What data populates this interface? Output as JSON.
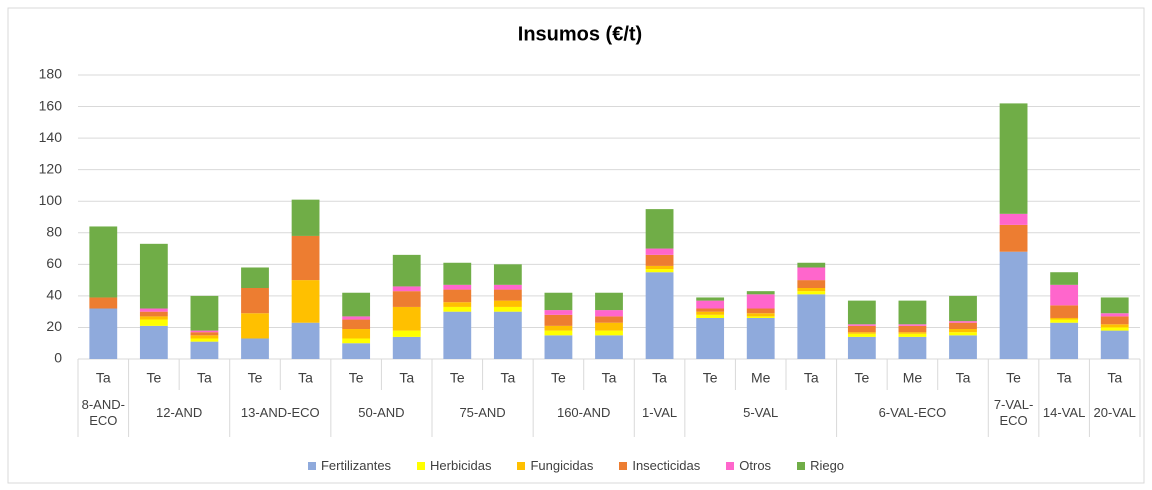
{
  "chart_data": {
    "type": "bar",
    "stacked": true,
    "title": "Insumos (€/t)",
    "groups": [
      {
        "name": "8-AND-ECO",
        "categories": [
          "Ta"
        ]
      },
      {
        "name": "12-AND",
        "categories": [
          "Te",
          "Ta"
        ]
      },
      {
        "name": "13-AND-ECO",
        "categories": [
          "Te",
          "Ta"
        ]
      },
      {
        "name": "50-AND",
        "categories": [
          "Te",
          "Ta"
        ]
      },
      {
        "name": "75-AND",
        "categories": [
          "Te",
          "Ta"
        ]
      },
      {
        "name": "160-AND",
        "categories": [
          "Te",
          "Ta"
        ]
      },
      {
        "name": "1-VAL",
        "categories": [
          "Ta"
        ]
      },
      {
        "name": "5-VAL",
        "categories": [
          "Te",
          "Me",
          "Ta"
        ]
      },
      {
        "name": "6-VAL-ECO",
        "categories": [
          "Te",
          "Me",
          "Ta"
        ]
      },
      {
        "name": "7-VAL-ECO",
        "categories": [
          "Te"
        ]
      },
      {
        "name": "14-VAL",
        "categories": [
          "Ta"
        ]
      },
      {
        "name": "20-VAL",
        "categories": [
          "Ta"
        ]
      }
    ],
    "series": [
      {
        "name": "Fertilizantes",
        "color": "#8faadc",
        "values": [
          32,
          21,
          11,
          13,
          23,
          10,
          14,
          30,
          30,
          15,
          15,
          55,
          26,
          26,
          41,
          14,
          14,
          15,
          68,
          23,
          18
        ]
      },
      {
        "name": "Herbicidas",
        "color": "#ffff00",
        "values": [
          0,
          4,
          2,
          0,
          0,
          3,
          4,
          3,
          3,
          3,
          3,
          2,
          2,
          1,
          2,
          2,
          2,
          2,
          0,
          2,
          2
        ]
      },
      {
        "name": "Fungicidas",
        "color": "#ffc000",
        "values": [
          0,
          2,
          2,
          16,
          27,
          6,
          15,
          3,
          4,
          3,
          5,
          2,
          2,
          2,
          2,
          1,
          1,
          2,
          0,
          1,
          2
        ]
      },
      {
        "name": "Insecticidas",
        "color": "#ed7d31",
        "values": [
          7,
          3,
          2,
          16,
          28,
          6,
          10,
          8,
          7,
          7,
          4,
          7,
          2,
          3,
          5,
          4,
          4,
          4,
          17,
          8,
          5
        ]
      },
      {
        "name": "Otros",
        "color": "#ff66cc",
        "values": [
          0,
          2,
          1,
          0,
          0,
          2,
          3,
          3,
          3,
          3,
          4,
          4,
          5,
          9,
          8,
          1,
          1,
          1,
          7,
          13,
          2
        ]
      },
      {
        "name": "Riego",
        "color": "#70ad47",
        "values": [
          45,
          41,
          22,
          13,
          23,
          15,
          20,
          14,
          13,
          11,
          11,
          25,
          2,
          2,
          3,
          15,
          15,
          16,
          70,
          8,
          10
        ]
      }
    ],
    "ylim": [
      0,
      180
    ],
    "yticks": [
      0,
      20,
      40,
      60,
      80,
      100,
      120,
      140,
      160,
      180
    ],
    "grid": true,
    "legend": "bottom"
  }
}
